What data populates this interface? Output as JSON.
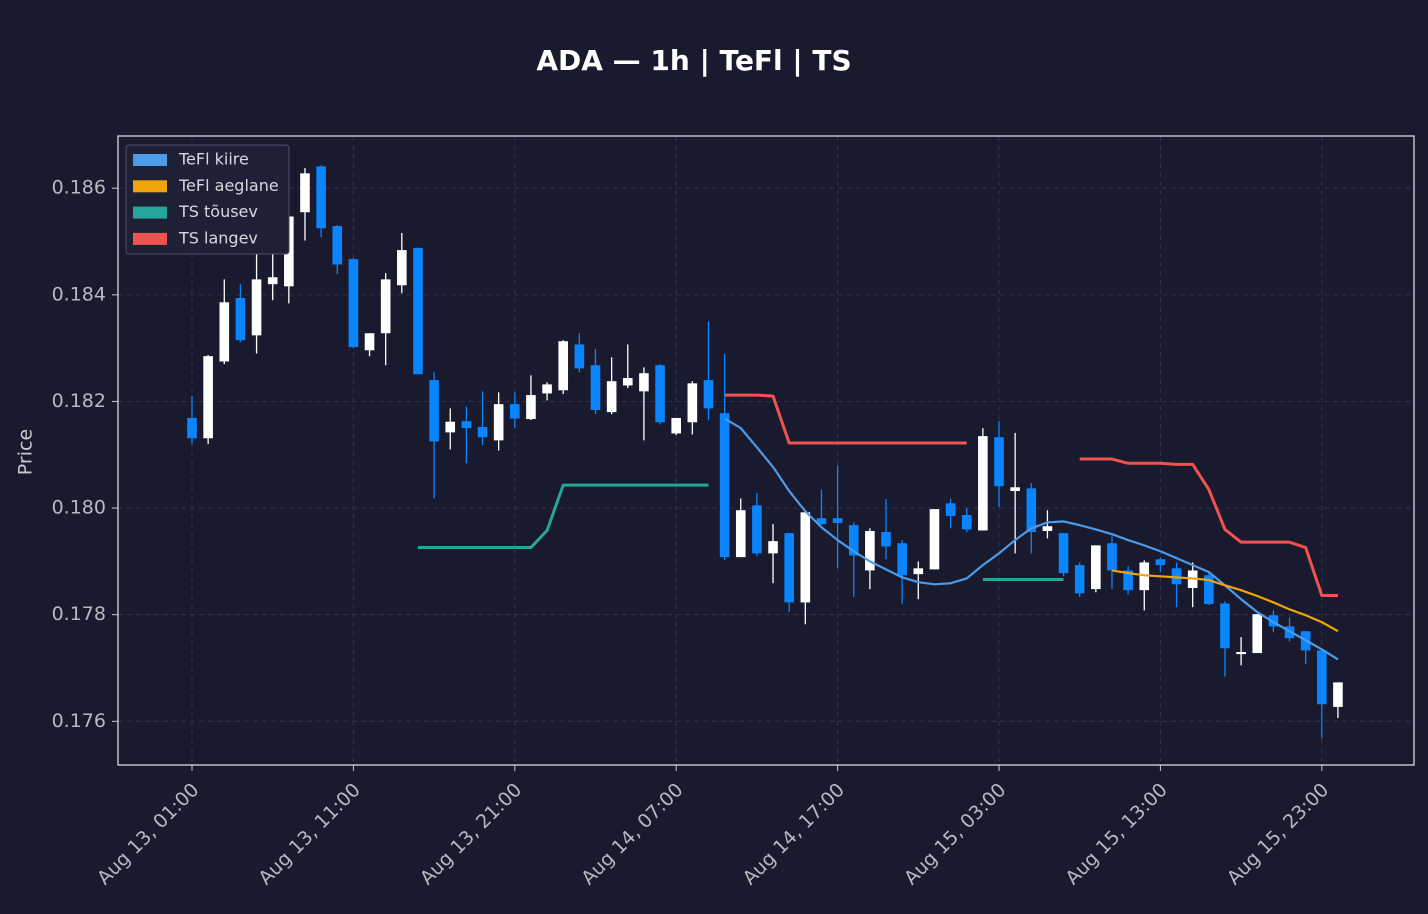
{
  "chart_data": {
    "type": "candlestick",
    "title": "ADA — 1h  |  TeFl  |  TS",
    "y_label": "Price",
    "categories": [
      "Aug 13, 01:00",
      null,
      null,
      null,
      null,
      null,
      null,
      null,
      null,
      null,
      "Aug 13, 11:00",
      null,
      null,
      null,
      null,
      null,
      null,
      null,
      null,
      null,
      "Aug 13, 21:00",
      null,
      null,
      null,
      null,
      null,
      null,
      null,
      null,
      null,
      "Aug 14, 07:00",
      null,
      null,
      null,
      null,
      null,
      null,
      null,
      null,
      null,
      "Aug 14, 17:00",
      null,
      null,
      null,
      null,
      null,
      null,
      null,
      null,
      null,
      "Aug 15, 03:00",
      null,
      null,
      null,
      null,
      null,
      null,
      null,
      null,
      null,
      "Aug 15, 13:00",
      null,
      null,
      null,
      null,
      null,
      null,
      null,
      null,
      null,
      "Aug 15, 23:00",
      null
    ],
    "open": [
      0.18169,
      0.18131,
      0.18275,
      0.18394,
      0.18324,
      0.1842,
      0.18416,
      0.18555,
      0.18641,
      0.18529,
      0.18467,
      0.18296,
      0.18328,
      0.18418,
      0.18488,
      0.1824,
      0.18142,
      0.18163,
      0.18152,
      0.18127,
      0.18195,
      0.18167,
      0.18215,
      0.18221,
      0.18307,
      0.18268,
      0.1818,
      0.1823,
      0.18219,
      0.18268,
      0.1814,
      0.18161,
      0.1824,
      0.18178,
      0.17908,
      0.18005,
      0.17915,
      0.17953,
      0.17823,
      0.17981,
      0.17981,
      0.17968,
      0.17883,
      0.17955,
      0.17934,
      0.17876,
      0.17885,
      0.18009,
      0.17987,
      0.17958,
      0.18133,
      0.18032,
      0.18037,
      0.17957,
      0.17953,
      0.17893,
      0.17848,
      0.17934,
      0.17883,
      0.17846,
      0.17904,
      0.17887,
      0.1785,
      0.17874,
      0.17821,
      0.17726,
      0.17728,
      0.17799,
      0.17778,
      0.17769,
      0.17733,
      0.17627
    ],
    "high": [
      0.1821,
      0.18287,
      0.18429,
      0.1842,
      0.18484,
      0.18491,
      0.18578,
      0.18638,
      0.18643,
      0.18531,
      0.18469,
      0.18328,
      0.18441,
      0.18516,
      0.18489,
      0.18255,
      0.18187,
      0.18191,
      0.18219,
      0.18217,
      0.18217,
      0.18249,
      0.18236,
      0.18315,
      0.18328,
      0.18298,
      0.18283,
      0.18307,
      0.18264,
      0.1827,
      0.18169,
      0.18238,
      0.1835,
      0.18289,
      0.18018,
      0.18028,
      0.1797,
      0.17953,
      0.17992,
      0.18035,
      0.1808,
      0.17973,
      0.17962,
      0.18017,
      0.1794,
      0.179,
      0.17998,
      0.18018,
      0.18,
      0.1815,
      0.18163,
      0.18141,
      0.18047,
      0.17996,
      0.17953,
      0.17898,
      0.1793,
      0.17947,
      0.17891,
      0.17902,
      0.17908,
      0.17898,
      0.17898,
      0.1788,
      0.17825,
      0.17758,
      0.17801,
      0.17808,
      0.17795,
      0.17769,
      0.17733,
      0.17673
    ],
    "low": [
      0.1812,
      0.1812,
      0.1827,
      0.18311,
      0.1829,
      0.1839,
      0.18384,
      0.18502,
      0.18508,
      0.18439,
      0.183,
      0.18285,
      0.18268,
      0.18403,
      0.18251,
      0.18018,
      0.1811,
      0.18084,
      0.18118,
      0.18108,
      0.1815,
      0.18165,
      0.18202,
      0.18214,
      0.18255,
      0.18176,
      0.18176,
      0.18225,
      0.18127,
      0.18157,
      0.18137,
      0.18138,
      0.18165,
      0.17902,
      0.17908,
      0.1791,
      0.17859,
      0.17805,
      0.17782,
      0.17968,
      0.17887,
      0.17833,
      0.17848,
      0.17904,
      0.1782,
      0.17829,
      0.17885,
      0.17962,
      0.17955,
      0.17958,
      0.18002,
      0.17915,
      0.17915,
      0.17943,
      0.17872,
      0.17833,
      0.17842,
      0.17848,
      0.17838,
      0.17808,
      0.1788,
      0.17814,
      0.17814,
      0.17818,
      0.17684,
      0.17705,
      0.17728,
      0.17767,
      0.1775,
      0.17707,
      0.17568,
      0.17606
    ],
    "close": [
      0.18131,
      0.18285,
      0.18386,
      0.18315,
      0.18429,
      0.18433,
      0.18547,
      0.18628,
      0.18525,
      0.18457,
      0.18302,
      0.18328,
      0.18429,
      0.18484,
      0.18251,
      0.18125,
      0.18162,
      0.1815,
      0.18133,
      0.18195,
      0.18168,
      0.18212,
      0.18232,
      0.18313,
      0.18262,
      0.18184,
      0.18238,
      0.18244,
      0.18253,
      0.18161,
      0.18169,
      0.18234,
      0.18187,
      0.17908,
      0.17996,
      0.17915,
      0.17938,
      0.17823,
      0.17992,
      0.1797,
      0.17972,
      0.17911,
      0.17957,
      0.17928,
      0.17874,
      0.17887,
      0.17998,
      0.17985,
      0.1796,
      0.18135,
      0.18041,
      0.18039,
      0.17955,
      0.17966,
      0.17878,
      0.1784,
      0.1793,
      0.17883,
      0.17846,
      0.17898,
      0.17893,
      0.17857,
      0.17883,
      0.1782,
      0.17737,
      0.1773,
      0.17801,
      0.17778,
      0.17756,
      0.17733,
      0.17632,
      0.17673
    ],
    "up_color": "#ffffff",
    "down_color": "#0a84ff",
    "series": [
      {
        "name": "TeFl kiire",
        "color": "#4c9be8",
        "width": 2.2,
        "values": [
          null,
          null,
          null,
          null,
          null,
          null,
          null,
          null,
          null,
          null,
          null,
          null,
          null,
          null,
          null,
          null,
          null,
          null,
          null,
          null,
          null,
          null,
          null,
          null,
          null,
          null,
          null,
          null,
          null,
          null,
          null,
          null,
          null,
          0.18168,
          0.1815,
          0.18114,
          0.18077,
          0.18032,
          0.17994,
          0.17964,
          0.1794,
          0.17919,
          0.179,
          0.17885,
          0.1787,
          0.17861,
          0.17857,
          0.17859,
          0.17868,
          0.17893,
          0.17915,
          0.1794,
          0.17962,
          0.17973,
          0.17975,
          0.17968,
          0.1796,
          0.17951,
          0.1794,
          0.1793,
          0.17919,
          0.17906,
          0.17893,
          0.1788,
          0.17855,
          0.17829,
          0.17805,
          0.17786,
          0.17769,
          0.17752,
          0.17735,
          0.17716
        ]
      },
      {
        "name": "TeFl aeglane",
        "color": "#f0a30a",
        "width": 2.2,
        "values": [
          null,
          null,
          null,
          null,
          null,
          null,
          null,
          null,
          null,
          null,
          null,
          null,
          null,
          null,
          null,
          null,
          null,
          null,
          null,
          null,
          null,
          null,
          null,
          null,
          null,
          null,
          null,
          null,
          null,
          null,
          null,
          null,
          null,
          null,
          null,
          null,
          null,
          null,
          null,
          null,
          null,
          null,
          null,
          null,
          null,
          null,
          null,
          null,
          null,
          null,
          null,
          null,
          null,
          null,
          null,
          null,
          null,
          0.17883,
          0.17878,
          0.17874,
          0.17872,
          0.1787,
          0.17868,
          0.17865,
          0.17855,
          0.17846,
          0.17835,
          0.17823,
          0.1781,
          0.17799,
          0.17786,
          0.17769
        ]
      },
      {
        "name": "TS tõusev",
        "color": "#26a69a",
        "width": 3,
        "values": [
          null,
          null,
          null,
          null,
          null,
          null,
          null,
          null,
          null,
          null,
          null,
          null,
          null,
          null,
          0.17926,
          0.17926,
          0.17926,
          0.17926,
          0.17926,
          0.17926,
          0.17926,
          0.17926,
          0.17958,
          0.18043,
          0.18043,
          0.18043,
          0.18043,
          0.18043,
          0.18043,
          0.18043,
          0.18043,
          0.18043,
          0.18043,
          null,
          null,
          null,
          null,
          null,
          null,
          null,
          null,
          null,
          null,
          null,
          null,
          null,
          null,
          null,
          null,
          0.17866,
          0.17866,
          0.17866,
          0.17866,
          0.17866,
          0.17866,
          null,
          null,
          null,
          null,
          null,
          null,
          null,
          null,
          null,
          null,
          null,
          null,
          null,
          null,
          null,
          null,
          null
        ]
      },
      {
        "name": "TS langev",
        "color": "#ef5350",
        "width": 3,
        "values": [
          null,
          null,
          null,
          null,
          null,
          null,
          null,
          null,
          null,
          null,
          null,
          null,
          null,
          null,
          null,
          null,
          null,
          null,
          null,
          null,
          null,
          null,
          null,
          null,
          null,
          null,
          null,
          null,
          null,
          null,
          null,
          null,
          null,
          0.18212,
          0.18212,
          0.18212,
          0.1821,
          0.18122,
          0.18122,
          0.18122,
          0.18122,
          0.18122,
          0.18122,
          0.18122,
          0.18122,
          0.18122,
          0.18122,
          0.18122,
          0.18122,
          null,
          null,
          null,
          null,
          null,
          null,
          0.18092,
          0.18092,
          0.18092,
          0.18084,
          0.18084,
          0.18084,
          0.18082,
          0.18082,
          0.18035,
          0.1796,
          0.17936,
          0.17936,
          0.17936,
          0.17936,
          0.17926,
          0.17836,
          0.17836
        ]
      }
    ],
    "ylim": [
      0.17518,
      0.18698
    ],
    "yticks": [
      0.176,
      0.178,
      {
        "value": 0.18,
        "label": "0.180"
      },
      0.182,
      0.184,
      0.186
    ],
    "grid": true,
    "legend": "upper left"
  }
}
